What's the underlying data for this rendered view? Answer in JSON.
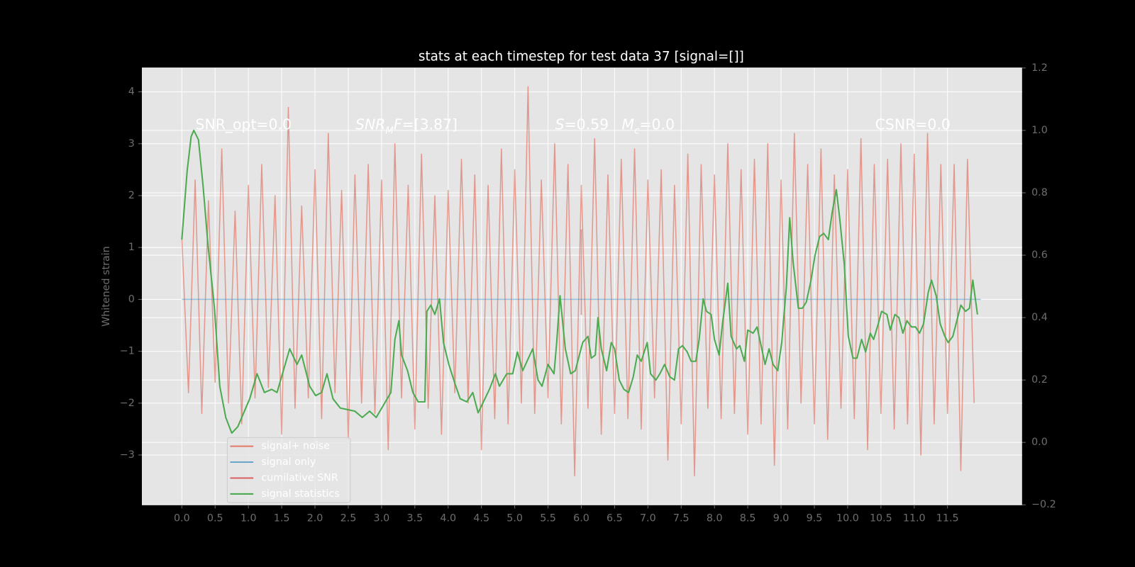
{
  "chart_data": {
    "type": "line",
    "title": "stats at each timestep for test data 37 [signal=[]]",
    "ylabel": "Whitened strain",
    "xlim": [
      -0.6,
      12.62
    ],
    "ylim": [
      -3.96,
      4.46
    ],
    "y2lim": [
      -0.2,
      1.2
    ],
    "grid": true,
    "legend": "lower left",
    "xticks": [
      {
        "value": 0,
        "label": "0.0"
      },
      {
        "value": 0.5,
        "label": "0.5"
      },
      {
        "value": 1,
        "label": "1.0"
      },
      {
        "value": 1.5,
        "label": "1.5"
      },
      {
        "value": 2,
        "label": "2.0"
      },
      {
        "value": 2.5,
        "label": "2.5"
      },
      {
        "value": 3,
        "label": "3.0"
      },
      {
        "value": 3.5,
        "label": "3.5"
      },
      {
        "value": 4,
        "label": "4.0"
      },
      {
        "value": 4.5,
        "label": "4.5"
      },
      {
        "value": 5,
        "label": "5.0"
      },
      {
        "value": 5.5,
        "label": "5.5"
      },
      {
        "value": 6,
        "label": "6.0"
      },
      {
        "value": 6.5,
        "label": "6.5"
      },
      {
        "value": 7,
        "label": "7.0"
      },
      {
        "value": 7.5,
        "label": "7.5"
      },
      {
        "value": 8,
        "label": "8.0"
      },
      {
        "value": 8.5,
        "label": "8.5"
      },
      {
        "value": 9,
        "label": "9.0"
      },
      {
        "value": 9.5,
        "label": "9.5"
      },
      {
        "value": 10,
        "label": "10.0"
      },
      {
        "value": 10.5,
        "label": "10.5"
      },
      {
        "value": 11,
        "label": "11.0"
      },
      {
        "value": 11.5,
        "label": "11.5"
      }
    ],
    "yticks": [
      {
        "value": -3,
        "label": "−3"
      },
      {
        "value": -2,
        "label": "−2"
      },
      {
        "value": -1,
        "label": "−1"
      },
      0,
      1,
      2,
      3,
      4
    ],
    "y2ticks": [
      {
        "value": -0.2,
        "label": "−0.2"
      },
      {
        "value": 0,
        "label": "0.0"
      },
      {
        "value": 0.2,
        "label": "0.2"
      },
      {
        "value": 0.4,
        "label": "0.4"
      },
      {
        "value": 0.6,
        "label": "0.6"
      },
      {
        "value": 0.8,
        "label": "0.8"
      },
      {
        "value": 1.0,
        "label": "1.0"
      },
      {
        "value": 1.2,
        "label": "1.2"
      }
    ],
    "annotations": [
      {
        "parts": [
          {
            "text": "SNR_opt=0.0"
          }
        ]
      },
      {
        "parts": [
          {
            "text": "SNR",
            "style": "italic"
          },
          {
            "text": "M",
            "style": "sub"
          },
          {
            "text": "F",
            "style": "italic"
          },
          {
            "text": "=[3.87]"
          }
        ]
      },
      {
        "parts": [
          {
            "text": "S",
            "style": "italic"
          },
          {
            "text": "=0.59"
          }
        ]
      },
      {
        "parts": [
          {
            "text": "M",
            "style": "italic"
          },
          {
            "text": "c",
            "style": "sub"
          },
          {
            "text": "=0.0"
          }
        ]
      },
      {
        "parts": [
          {
            "text": "CSNR=0.0"
          }
        ]
      }
    ],
    "series": [
      {
        "name": "signal+ noise",
        "color": "#E24A33",
        "alpha": 0.5,
        "x": [
          0,
          0.1,
          0.2,
          0.3,
          0.4,
          0.5,
          0.6,
          0.7,
          0.8,
          0.9,
          1,
          1.1,
          1.2,
          1.3,
          1.4,
          1.5,
          1.6,
          1.7,
          1.8,
          1.9,
          2,
          2.1,
          2.2,
          2.3,
          2.4,
          2.5,
          2.6,
          2.7,
          2.8,
          2.9,
          3,
          3.1,
          3.2,
          3.3,
          3.4,
          3.5,
          3.6,
          3.7,
          3.8,
          3.9,
          4,
          4.1,
          4.2,
          4.3,
          4.4,
          4.5,
          4.6,
          4.7,
          4.8,
          4.9,
          5,
          5.1,
          5.2,
          5.3,
          5.4,
          5.5,
          5.6,
          5.7,
          5.8,
          5.9,
          6,
          6.1,
          6.2,
          6.3,
          6.4,
          6.5,
          6.6,
          6.7,
          6.8,
          6.9,
          7,
          7.1,
          7.2,
          7.3,
          7.4,
          7.5,
          7.6,
          7.7,
          7.8,
          7.9,
          8,
          8.1,
          8.2,
          8.3,
          8.4,
          8.5,
          8.6,
          8.7,
          8.8,
          8.9,
          9,
          9.1,
          9.2,
          9.3,
          9.4,
          9.5,
          9.6,
          9.7,
          9.8,
          9.9,
          10,
          10.1,
          10.2,
          10.3,
          10.4,
          10.5,
          10.6,
          10.7,
          10.8,
          10.9,
          11,
          11.1,
          11.2,
          11.3,
          11.4,
          11.5,
          11.6,
          11.7,
          11.8,
          11.9
        ],
        "values": [
          1.2,
          -1.8,
          2.3,
          -2.2,
          1.9,
          -1.6,
          2.9,
          -2.0,
          1.7,
          -2.4,
          2.2,
          -1.9,
          2.6,
          -1.7,
          2.0,
          -2.6,
          3.7,
          -2.1,
          1.8,
          -1.9,
          2.5,
          -2.3,
          3.2,
          -1.8,
          2.1,
          -2.7,
          2.4,
          -2.0,
          2.6,
          -2.2,
          2.3,
          -2.9,
          3.0,
          -1.9,
          2.2,
          -2.5,
          2.8,
          -2.1,
          2.0,
          -2.6,
          2.1,
          -1.8,
          2.7,
          -2.0,
          2.4,
          -2.9,
          2.2,
          -2.3,
          2.9,
          -2.4,
          2.5,
          -2.0,
          4.1,
          -2.2,
          2.3,
          -1.9,
          3.0,
          -2.4,
          2.6,
          -3.4,
          2.2,
          -2.1,
          3.1,
          -2.6,
          2.4,
          -2.2,
          2.7,
          -2.3,
          2.9,
          -2.5,
          2.3,
          -1.9,
          2.5,
          -3.1,
          2.2,
          -2.4,
          2.8,
          -3.4,
          2.6,
          -2.1,
          2.4,
          -2.3,
          3.0,
          -2.2,
          2.5,
          -2.6,
          2.7,
          -2.4,
          3.0,
          -3.2,
          2.3,
          -2.5,
          3.2,
          -2.0,
          2.6,
          -2.4,
          2.9,
          -2.7,
          2.4,
          -2.1,
          2.5,
          -2.3,
          3.1,
          -2.9,
          2.6,
          -2.2,
          2.7,
          -2.5,
          3.0,
          -2.4,
          2.8,
          -3.0,
          3.2,
          -2.4,
          2.6,
          -2.2,
          2.6,
          -3.3,
          2.7,
          -2.0
        ]
      },
      {
        "name": "signal only",
        "color": "#348ABD",
        "alpha": 0.5,
        "x": [
          0,
          12
        ],
        "values": [
          0,
          0
        ]
      },
      {
        "name": "cumilative SNR",
        "color": "#d62728",
        "alpha": 0.5,
        "x": [
          6,
          6
        ],
        "values": [
          1.35,
          -0.3
        ]
      },
      {
        "name": "signal statistics",
        "color": "#4caa50",
        "alpha": 1,
        "axis": "y2",
        "x": [
          0,
          0.08,
          0.14,
          0.18,
          0.25,
          0.32,
          0.39,
          0.49,
          0.57,
          0.66,
          0.75,
          0.84,
          1.02,
          1.13,
          1.24,
          1.35,
          1.43,
          1.62,
          1.73,
          1.8,
          1.92,
          2.01,
          2.1,
          2.18,
          2.27,
          2.38,
          2.6,
          2.71,
          2.82,
          2.92,
          3.03,
          3.14,
          3.2,
          3.26,
          3.3,
          3.39,
          3.47,
          3.55,
          3.65,
          3.68,
          3.74,
          3.8,
          3.87,
          3.93,
          4.01,
          4.1,
          4.18,
          4.28,
          4.37,
          4.45,
          4.53,
          4.62,
          4.71,
          4.77,
          4.88,
          4.97,
          5.04,
          5.12,
          5.27,
          5.35,
          5.41,
          5.5,
          5.59,
          5.63,
          5.68,
          5.76,
          5.84,
          5.91,
          6.02,
          6.1,
          6.15,
          6.21,
          6.25,
          6.3,
          6.38,
          6.45,
          6.5,
          6.57,
          6.64,
          6.71,
          6.78,
          6.84,
          6.9,
          6.99,
          7.04,
          7.12,
          7.18,
          7.25,
          7.33,
          7.4,
          7.46,
          7.52,
          7.59,
          7.65,
          7.72,
          7.77,
          7.83,
          7.88,
          7.95,
          8.0,
          8.07,
          8.12,
          8.2,
          8.25,
          8.33,
          8.38,
          8.45,
          8.5,
          8.58,
          8.64,
          8.71,
          8.76,
          8.82,
          8.88,
          8.95,
          9.01,
          9.08,
          9.13,
          9.18,
          9.26,
          9.32,
          9.38,
          9.45,
          9.51,
          9.58,
          9.64,
          9.71,
          9.77,
          9.83,
          9.88,
          9.95,
          10.01,
          10.08,
          10.14,
          10.21,
          10.27,
          10.34,
          10.39,
          10.46,
          10.51,
          10.59,
          10.64,
          10.71,
          10.77,
          10.83,
          10.89,
          10.96,
          11.02,
          11.08,
          11.14,
          11.21,
          11.26,
          11.33,
          11.39,
          11.46,
          11.51,
          11.58,
          11.64,
          11.7,
          11.77,
          11.83,
          11.88,
          11.95
        ],
        "values": [
          0.65,
          0.87,
          0.98,
          1.0,
          0.97,
          0.82,
          0.64,
          0.43,
          0.18,
          0.08,
          0.03,
          0.05,
          0.14,
          0.22,
          0.16,
          0.17,
          0.16,
          0.3,
          0.25,
          0.28,
          0.18,
          0.15,
          0.16,
          0.22,
          0.14,
          0.11,
          0.1,
          0.08,
          0.1,
          0.08,
          0.12,
          0.16,
          0.33,
          0.39,
          0.28,
          0.23,
          0.16,
          0.13,
          0.13,
          0.42,
          0.44,
          0.41,
          0.46,
          0.32,
          0.25,
          0.19,
          0.14,
          0.13,
          0.16,
          0.095,
          0.13,
          0.17,
          0.22,
          0.18,
          0.22,
          0.22,
          0.29,
          0.23,
          0.3,
          0.2,
          0.18,
          0.25,
          0.22,
          0.32,
          0.47,
          0.3,
          0.22,
          0.23,
          0.32,
          0.34,
          0.27,
          0.28,
          0.4,
          0.3,
          0.23,
          0.32,
          0.3,
          0.2,
          0.17,
          0.16,
          0.21,
          0.28,
          0.26,
          0.32,
          0.22,
          0.2,
          0.22,
          0.25,
          0.21,
          0.2,
          0.3,
          0.31,
          0.29,
          0.26,
          0.26,
          0.33,
          0.46,
          0.42,
          0.41,
          0.33,
          0.28,
          0.38,
          0.51,
          0.34,
          0.3,
          0.31,
          0.26,
          0.36,
          0.35,
          0.37,
          0.3,
          0.25,
          0.3,
          0.25,
          0.23,
          0.32,
          0.5,
          0.72,
          0.58,
          0.43,
          0.43,
          0.45,
          0.52,
          0.6,
          0.66,
          0.67,
          0.65,
          0.74,
          0.81,
          0.72,
          0.57,
          0.34,
          0.27,
          0.27,
          0.33,
          0.29,
          0.35,
          0.33,
          0.38,
          0.42,
          0.41,
          0.36,
          0.41,
          0.4,
          0.35,
          0.39,
          0.37,
          0.37,
          0.35,
          0.38,
          0.48,
          0.52,
          0.47,
          0.38,
          0.34,
          0.32,
          0.34,
          0.39,
          0.44,
          0.42,
          0.43,
          0.52,
          0.41
        ]
      }
    ]
  }
}
